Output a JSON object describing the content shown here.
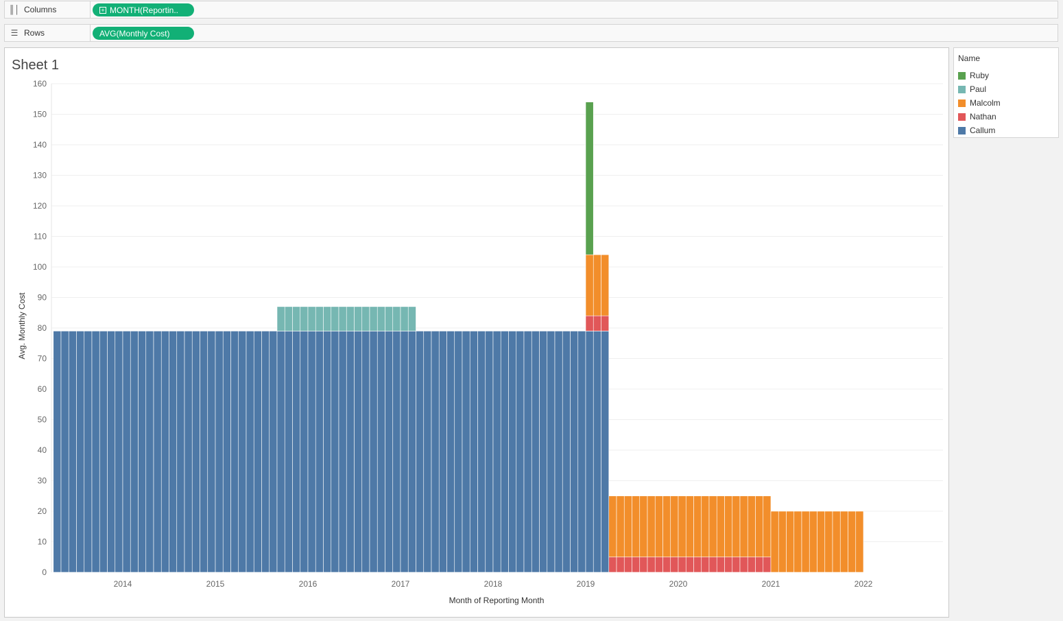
{
  "shelves": {
    "columns": {
      "label": "Columns",
      "icon": "columns-icon",
      "pill": "MONTH(Reportin.."
    },
    "rows": {
      "label": "Rows",
      "icon": "rows-icon",
      "pill": "AVG(Monthly Cost)"
    }
  },
  "sheet": {
    "title": "Sheet 1"
  },
  "legend": {
    "title": "Name",
    "items": [
      {
        "label": "Ruby",
        "color": "#59a14f"
      },
      {
        "label": "Paul",
        "color": "#76b7b2"
      },
      {
        "label": "Malcolm",
        "color": "#f28e2b"
      },
      {
        "label": "Nathan",
        "color": "#e15759"
      },
      {
        "label": "Callum",
        "color": "#4e79a7"
      }
    ]
  },
  "chart_data": {
    "type": "bar",
    "stacked": true,
    "title": "",
    "xlabel": "Month of Reporting Month",
    "ylabel": "Avg. Monthly Cost",
    "ylim": [
      0,
      160
    ],
    "yticks": [
      0,
      10,
      20,
      30,
      40,
      50,
      60,
      70,
      80,
      90,
      100,
      110,
      120,
      130,
      140,
      150,
      160
    ],
    "xticks": [
      "2014",
      "2015",
      "2016",
      "2017",
      "2018",
      "2019",
      "2020",
      "2021",
      "2022"
    ],
    "x_range": [
      "2013-10",
      "2022-06"
    ],
    "grid": "horizontal",
    "legend_position": "right",
    "series_order_bottom_to_top": [
      "Callum",
      "Nathan",
      "Malcolm",
      "Paul",
      "Ruby"
    ],
    "segments": [
      {
        "name": "Callum",
        "from": "2013-10",
        "to": "2016-02",
        "value": 79
      },
      {
        "name": "Callum",
        "from": "2016-03",
        "to": "2017-08",
        "value": 79
      },
      {
        "name": "Paul",
        "from": "2016-03",
        "to": "2017-08",
        "value": 8
      },
      {
        "name": "Callum",
        "from": "2017-09",
        "to": "2019-06",
        "value": 79
      },
      {
        "name": "Callum",
        "from": "2019-07",
        "to": "2019-07",
        "value": 79
      },
      {
        "name": "Nathan",
        "from": "2019-07",
        "to": "2019-07",
        "value": 5
      },
      {
        "name": "Malcolm",
        "from": "2019-07",
        "to": "2019-07",
        "value": 20
      },
      {
        "name": "Ruby",
        "from": "2019-07",
        "to": "2019-07",
        "value": 50
      },
      {
        "name": "Callum",
        "from": "2019-08",
        "to": "2019-09",
        "value": 79
      },
      {
        "name": "Nathan",
        "from": "2019-08",
        "to": "2019-09",
        "value": 5
      },
      {
        "name": "Malcolm",
        "from": "2019-08",
        "to": "2019-09",
        "value": 20
      },
      {
        "name": "Nathan",
        "from": "2019-10",
        "to": "2021-06",
        "value": 5
      },
      {
        "name": "Malcolm",
        "from": "2019-10",
        "to": "2021-06",
        "value": 20
      },
      {
        "name": "Malcolm",
        "from": "2021-07",
        "to": "2022-06",
        "value": 20
      }
    ]
  }
}
